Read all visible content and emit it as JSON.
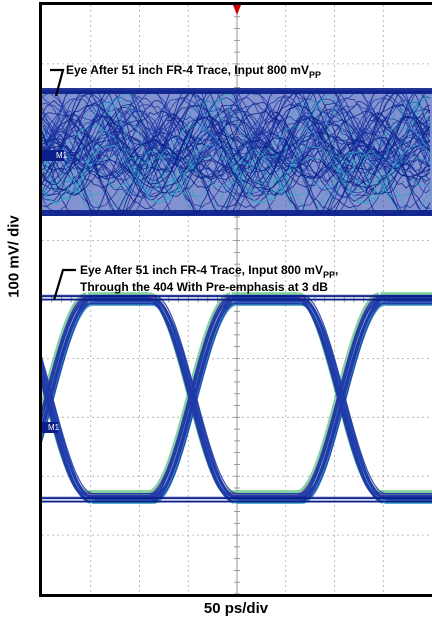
{
  "chart_data": {
    "type": "eye-diagram",
    "xlabel": "50 ps/div",
    "ylabel": "100 mV/ div",
    "grid": true,
    "marker_label": "M1",
    "annotations": [
      {
        "id": "top",
        "lines": [
          "Eye After 51 inch FR-4 Trace, Input 800 mV",
          "PP",
          ""
        ]
      },
      {
        "id": "bottom",
        "lines": [
          "Eye After 51 inch FR-4 Trace, Input 800 mV",
          "PP",
          ","
        ],
        "line2": "Through the 404 With Pre-emphasis at 3 dB"
      }
    ],
    "series": [
      {
        "name": "Eye After 51 inch FR-4 Trace, Input 800 mVPP",
        "eye_state": "closed"
      },
      {
        "name": "Eye After 51 inch FR-4 Trace, Input 800 mVPP, Through the 404 With Pre-emphasis at 3 dB",
        "eye_state": "open"
      }
    ],
    "colors": {
      "trace": "#1f3aa8",
      "trace_dark": "#0a1f8a",
      "trace_cyan": "#2fa7c8",
      "trace_green": "#4fbf7a",
      "trace_magenta": "#b04aa0",
      "trigger": "#cc0000"
    }
  }
}
